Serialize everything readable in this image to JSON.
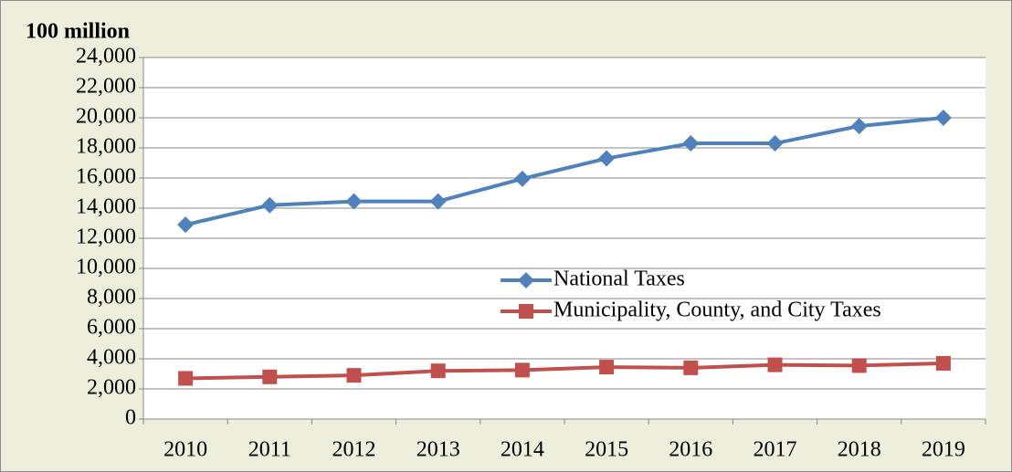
{
  "chart_data": {
    "type": "line",
    "y_label": "100 million",
    "categories": [
      "2010",
      "2011",
      "2012",
      "2013",
      "2014",
      "2015",
      "2016",
      "2017",
      "2018",
      "2019"
    ],
    "series": [
      {
        "name": "National Taxes",
        "color": "#4f81bd",
        "marker": "diamond",
        "values": [
          12900,
          14200,
          14450,
          14450,
          15950,
          17300,
          18300,
          18300,
          19450,
          20000
        ]
      },
      {
        "name": "Municipality, County, and City Taxes",
        "color": "#c0504d",
        "marker": "square",
        "values": [
          2700,
          2800,
          2900,
          3200,
          3250,
          3450,
          3400,
          3600,
          3550,
          3700
        ]
      }
    ],
    "ylim": [
      0,
      24000
    ],
    "yticks": [
      0,
      {
        "value": 2000,
        "label": "2,000"
      },
      {
        "value": 4000,
        "label": "4,000"
      },
      {
        "value": 6000,
        "label": "6,000"
      },
      {
        "value": 8000,
        "label": "8,000"
      },
      {
        "value": 10000,
        "label": "10,000"
      },
      {
        "value": 12000,
        "label": "12,000"
      },
      {
        "value": 14000,
        "label": "14,000"
      },
      {
        "value": 16000,
        "label": "16,000"
      },
      {
        "value": 18000,
        "label": "18,000"
      },
      {
        "value": 20000,
        "label": "20,000"
      },
      {
        "value": 22000,
        "label": "22,000"
      },
      {
        "value": 24000,
        "label": "24,000"
      }
    ],
    "grid": true,
    "legend_position": "right"
  }
}
